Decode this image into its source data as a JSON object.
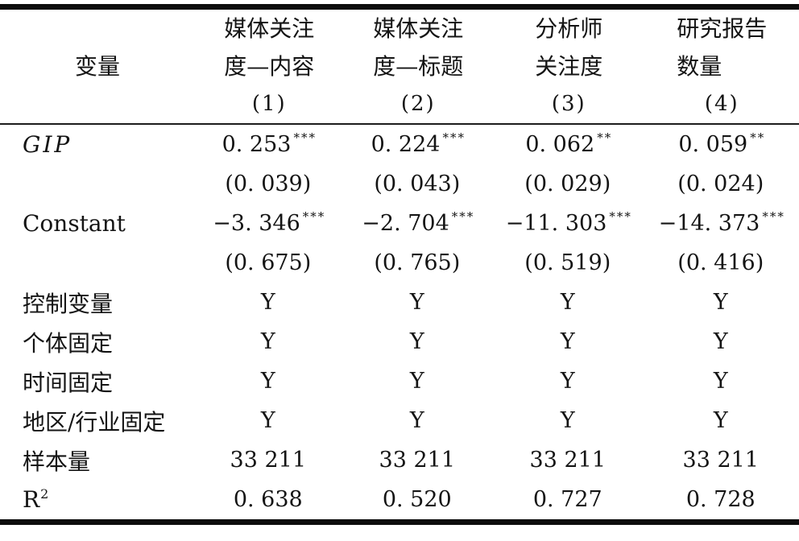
{
  "page": {
    "background_color": "#ffffff",
    "text_color": "#141414",
    "rule_color": "#0d0d0d"
  },
  "table": {
    "variable_header": "变量",
    "columns": [
      {
        "line1": "媒体关注",
        "line2": "度—内容",
        "num": "(1)"
      },
      {
        "line1": "媒体关注",
        "line2": "度—标题",
        "num": "(2)"
      },
      {
        "line1": "分析师",
        "line2": "关注度",
        "num": "(3)"
      },
      {
        "line1": "研究报告",
        "line2": "数量",
        "num": "(4)"
      }
    ],
    "rows": [
      {
        "label": "GIP",
        "sup": "",
        "cells": [
          {
            "v": "0. 253",
            "s": "***"
          },
          {
            "v": "0. 224",
            "s": "***"
          },
          {
            "v": "0. 062",
            "s": "**"
          },
          {
            "v": "0. 059",
            "s": "**"
          }
        ]
      },
      {
        "label": "",
        "sup": "",
        "cells": [
          {
            "v": "(0. 039)",
            "s": ""
          },
          {
            "v": "(0. 043)",
            "s": ""
          },
          {
            "v": "(0. 029)",
            "s": ""
          },
          {
            "v": "(0. 024)",
            "s": ""
          }
        ]
      },
      {
        "label": "Constant",
        "sup": "",
        "cells": [
          {
            "v": "−3. 346",
            "s": "***"
          },
          {
            "v": "−2. 704",
            "s": "***"
          },
          {
            "v": "−11. 303",
            "s": "***"
          },
          {
            "v": "−14. 373",
            "s": "***"
          }
        ]
      },
      {
        "label": "",
        "sup": "",
        "cells": [
          {
            "v": "(0. 675)",
            "s": ""
          },
          {
            "v": "(0. 765)",
            "s": ""
          },
          {
            "v": "(0. 519)",
            "s": ""
          },
          {
            "v": "(0. 416)",
            "s": ""
          }
        ]
      },
      {
        "label": "控制变量",
        "sup": "",
        "cells": [
          {
            "v": "Y",
            "s": ""
          },
          {
            "v": "Y",
            "s": ""
          },
          {
            "v": "Y",
            "s": ""
          },
          {
            "v": "Y",
            "s": ""
          }
        ]
      },
      {
        "label": "个体固定",
        "sup": "",
        "cells": [
          {
            "v": "Y",
            "s": ""
          },
          {
            "v": "Y",
            "s": ""
          },
          {
            "v": "Y",
            "s": ""
          },
          {
            "v": "Y",
            "s": ""
          }
        ]
      },
      {
        "label": "时间固定",
        "sup": "",
        "cells": [
          {
            "v": "Y",
            "s": ""
          },
          {
            "v": "Y",
            "s": ""
          },
          {
            "v": "Y",
            "s": ""
          },
          {
            "v": "Y",
            "s": ""
          }
        ]
      },
      {
        "label": "地区/行业固定",
        "sup": "",
        "cells": [
          {
            "v": "Y",
            "s": ""
          },
          {
            "v": "Y",
            "s": ""
          },
          {
            "v": "Y",
            "s": ""
          },
          {
            "v": "Y",
            "s": ""
          }
        ]
      },
      {
        "label": "样本量",
        "sup": "",
        "cells": [
          {
            "v": "33 211",
            "s": ""
          },
          {
            "v": "33 211",
            "s": ""
          },
          {
            "v": "33 211",
            "s": ""
          },
          {
            "v": "33 211",
            "s": ""
          }
        ]
      },
      {
        "label": "R",
        "sup": "2",
        "cells": [
          {
            "v": "0. 638",
            "s": ""
          },
          {
            "v": "0. 520",
            "s": ""
          },
          {
            "v": "0. 727",
            "s": ""
          },
          {
            "v": "0. 728",
            "s": ""
          }
        ]
      }
    ]
  }
}
